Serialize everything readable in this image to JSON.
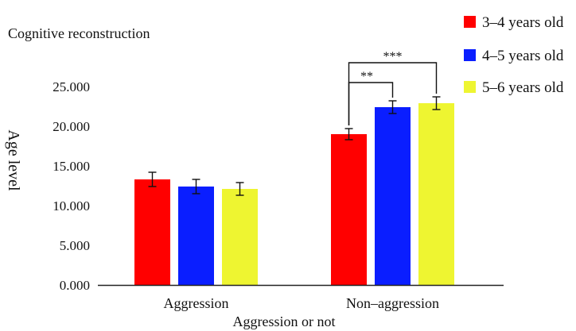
{
  "chart_data": {
    "type": "bar",
    "title": "Cognitive reconstruction",
    "xlabel": "Aggression or not",
    "ylabel": "Age level",
    "categories": [
      "Aggression",
      "Non–aggression"
    ],
    "yticks": [
      "0.000",
      "5.000",
      "10.000",
      "15.000",
      "20.000",
      "25.000"
    ],
    "ylim": [
      0,
      25
    ],
    "grid": false,
    "legend_position": "top-right",
    "series": [
      {
        "name": "3–4 years old",
        "color": "#ff0000",
        "values": [
          13.3,
          19.0
        ],
        "errors": [
          0.9,
          0.7
        ]
      },
      {
        "name": "4–5 years old",
        "color": "#0a1eff",
        "values": [
          12.4,
          22.4
        ],
        "errors": [
          0.9,
          0.8
        ]
      },
      {
        "name": "5–6 years old",
        "color": "#eef531",
        "values": [
          12.1,
          22.9
        ],
        "errors": [
          0.8,
          0.8
        ]
      }
    ],
    "annotations": [
      {
        "label": "**",
        "category": 1,
        "from_series": 0,
        "to_series": 1
      },
      {
        "label": "***",
        "category": 1,
        "from_series": 0,
        "to_series": 2
      }
    ]
  }
}
